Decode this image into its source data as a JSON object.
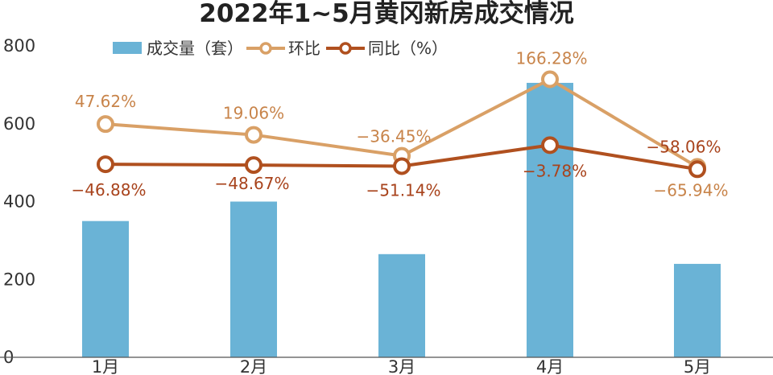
{
  "colors": {
    "bar": "#6ab3d6",
    "huanbi": "#d9a066",
    "tongbi": "#b0501f",
    "huanbi_label": "#c8844a",
    "tongbi_label": "#a8431c"
  },
  "chart_data": {
    "type": "bar",
    "title": "2022年1~5月黄冈新房成交情况",
    "categories": [
      "1月",
      "2月",
      "3月",
      "4月",
      "5月"
    ],
    "ylim": [
      0,
      800
    ],
    "yticks": [
      "0",
      "200",
      "400",
      "600",
      "800"
    ],
    "grid": false,
    "legend_position": "top",
    "series": [
      {
        "name": "成交量（套）",
        "type": "bar",
        "values": [
          350,
          400,
          265,
          705,
          240
        ]
      },
      {
        "name": "环比",
        "type": "line",
        "values": [
          47.62,
          19.06,
          -36.45,
          166.28,
          -65.94
        ],
        "labels": [
          "47.62%",
          "19.06%",
          "−36.45%",
          "166.28%",
          "−65.94%"
        ]
      },
      {
        "name": "同比（%）",
        "type": "line",
        "values": [
          -46.88,
          -48.67,
          -51.14,
          -3.78,
          -58.06
        ],
        "labels": [
          "−46.88%",
          "−48.67%",
          "−51.14%",
          "−3.78%",
          "−58.06%"
        ]
      }
    ]
  }
}
